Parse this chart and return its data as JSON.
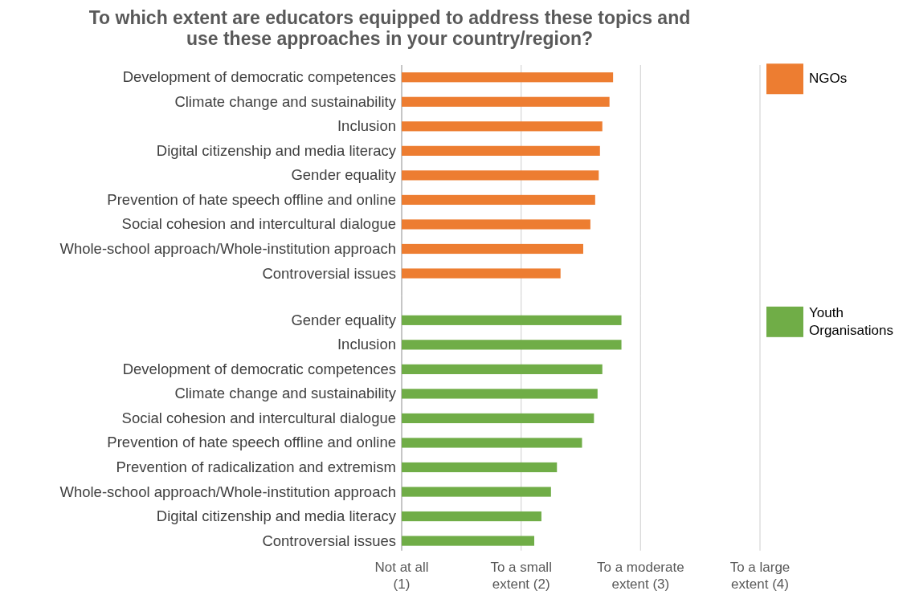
{
  "chart_data": [
    {
      "type": "bar",
      "orientation": "horizontal",
      "title": "To which extent are educators equipped to address these topics and\nuse these approaches in your country/region?",
      "categories": [
        "Development of democratic competences",
        "Climate change and sustainability",
        "Inclusion",
        "Digital citizenship and media literacy",
        "Gender equality",
        "Prevention of hate speech offline and online",
        "Social cohesion and intercultural dialogue",
        "Whole-school approach/Whole-institution approach",
        "Controversial issues"
      ],
      "series": [
        {
          "name": "NGOs",
          "color": "#ed7d31",
          "values": [
            2.77,
            2.74,
            2.68,
            2.66,
            2.65,
            2.62,
            2.58,
            2.52,
            2.33
          ]
        }
      ],
      "xlim": [
        1,
        4
      ],
      "xticks": [
        {
          "value": 1,
          "label": null
        },
        {
          "value": 2,
          "label": null
        },
        {
          "value": 3,
          "label": null
        },
        {
          "value": 4,
          "label": null
        }
      ],
      "tick_labels": "y",
      "grid": "x",
      "legend": "right"
    },
    {
      "type": "bar",
      "orientation": "horizontal",
      "categories": [
        "Gender equality",
        "Inclusion",
        "Development of democratic competences",
        "Climate change and sustainability",
        "Social cohesion and intercultural dialogue",
        "Prevention of hate speech offline and online",
        "Prevention of radicalization and extremism",
        "Whole-school approach/Whole-institution approach",
        "Digital citizenship and media literacy",
        "Controversial issues"
      ],
      "series": [
        {
          "name": "Youth\nOrganisations",
          "color": "#70ad47",
          "values": [
            2.84,
            2.84,
            2.68,
            2.64,
            2.61,
            2.51,
            2.3,
            2.25,
            2.17,
            2.11
          ]
        }
      ],
      "xlim": [
        1,
        4
      ],
      "xticks": [
        {
          "value": 1,
          "label": "Not at all\n(1)"
        },
        {
          "value": 2,
          "label": "To a small\nextent (2)"
        },
        {
          "value": 3,
          "label": "To a moderate\nextent (3)"
        },
        {
          "value": 4,
          "label": "To a large\nextent (4)"
        }
      ],
      "grid": "x",
      "legend": "right"
    }
  ]
}
